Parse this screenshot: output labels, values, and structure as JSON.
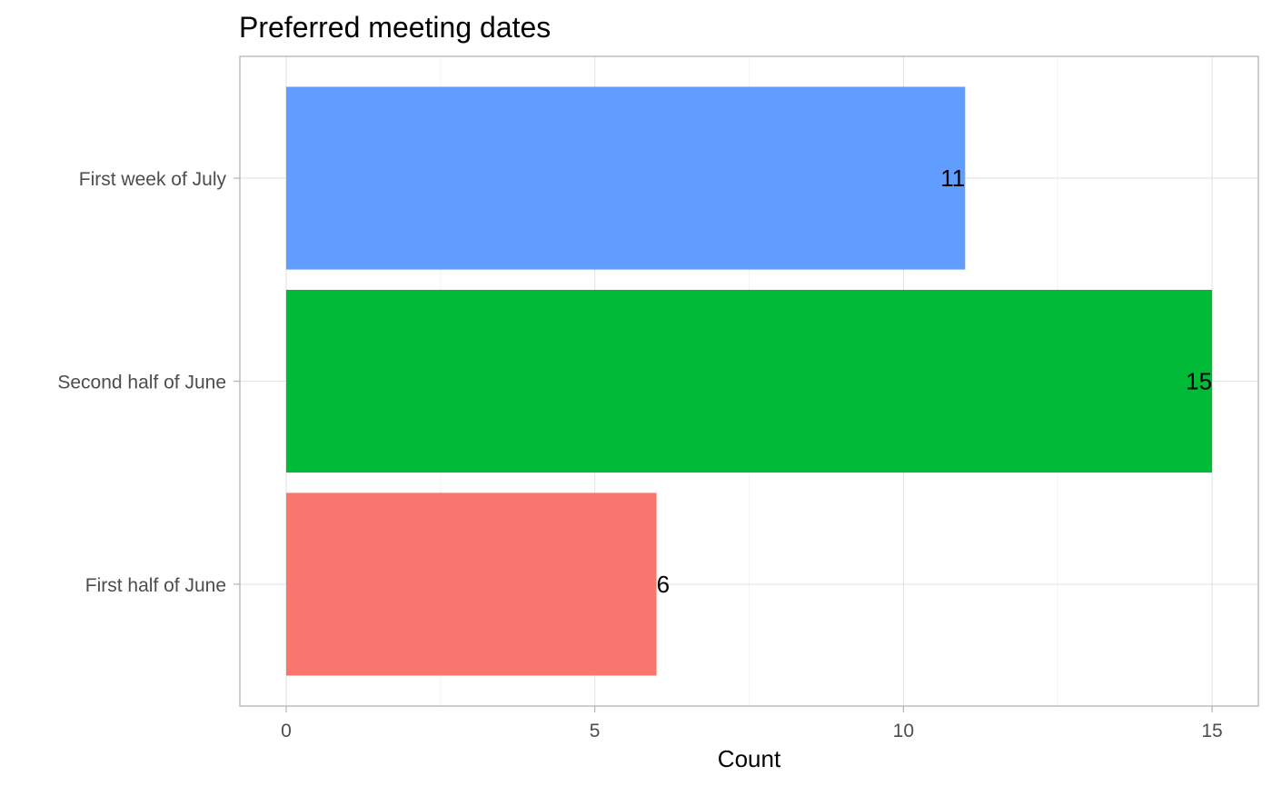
{
  "chart_data": {
    "type": "bar",
    "orientation": "horizontal",
    "title": "Preferred meeting dates",
    "xlabel": "Count",
    "ylabel": "",
    "categories": [
      "First half of June",
      "Second half of June",
      "First week of July"
    ],
    "values": [
      6,
      15,
      11
    ],
    "colors": [
      "#F8766D",
      "#00BA38",
      "#619CFF"
    ],
    "data_labels": [
      "6",
      "15",
      "11"
    ],
    "xlim": [
      -0.75,
      15.75
    ],
    "xticks": [
      0,
      5,
      10,
      15
    ],
    "xtick_labels": [
      "0",
      "5",
      "10",
      "15"
    ],
    "grid": true,
    "legend": "none"
  }
}
